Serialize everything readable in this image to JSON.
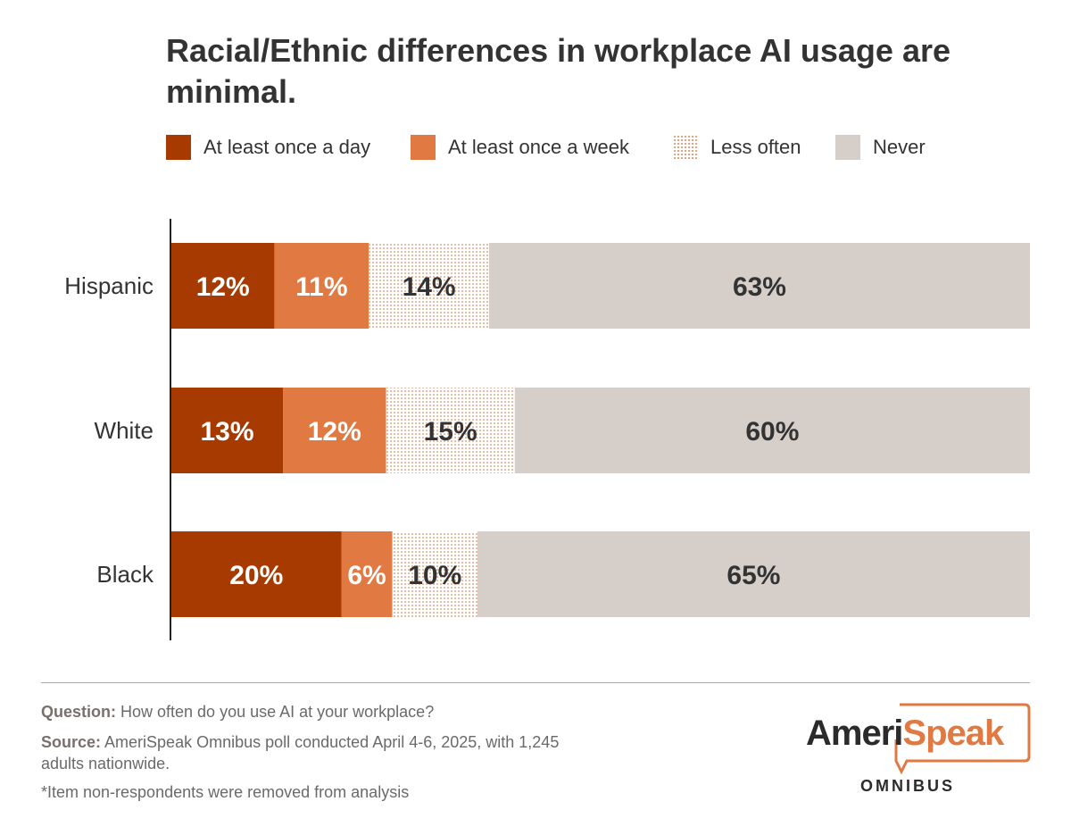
{
  "title": "Racial/Ethnic differences in workplace AI usage are minimal.",
  "colors": {
    "daily": "#a63a00",
    "weekly": "#e07a42",
    "less_often_dots": "#e58a5c",
    "never": "#d6cfc9",
    "label_dark": "#333333",
    "label_light": "#ffffff"
  },
  "legend": [
    {
      "label": "At least once a day",
      "style": "daily"
    },
    {
      "label": "At least once a week",
      "style": "weekly"
    },
    {
      "label": "Less often",
      "style": "less_often"
    },
    {
      "label": "Never",
      "style": "never"
    }
  ],
  "chart_data": {
    "type": "bar",
    "orientation": "horizontal",
    "stacked": true,
    "categories": [
      "Hispanic",
      "White",
      "Black"
    ],
    "series": [
      {
        "name": "At least once a day",
        "values": [
          12,
          13,
          20
        ],
        "labels": [
          "12%",
          "13%",
          "20%"
        ]
      },
      {
        "name": "At least once a week",
        "values": [
          11,
          12,
          6
        ],
        "labels": [
          "11%",
          "12%",
          "6%"
        ]
      },
      {
        "name": "Less often",
        "values": [
          14,
          15,
          10
        ],
        "labels": [
          "14%",
          "15%",
          "10%"
        ]
      },
      {
        "name": "Never",
        "values": [
          63,
          60,
          65
        ],
        "labels": [
          "63%",
          "60%",
          "65%"
        ]
      }
    ],
    "xlim": [
      0,
      100
    ],
    "grid": false,
    "legend_position": "top"
  },
  "footer": {
    "question_label": "Question:",
    "question_text": " How often do you use AI at your workplace?",
    "source_label": "Source:",
    "source_text": " AmeriSpeak Omnibus poll conducted April 4-6, 2025, with 1,245 adults nationwide.",
    "note": "*Item non-respondents were removed from analysis"
  },
  "logo": {
    "ameri": "Ameri",
    "speak": "Speak",
    "omnibus": "OMNIBUS"
  }
}
